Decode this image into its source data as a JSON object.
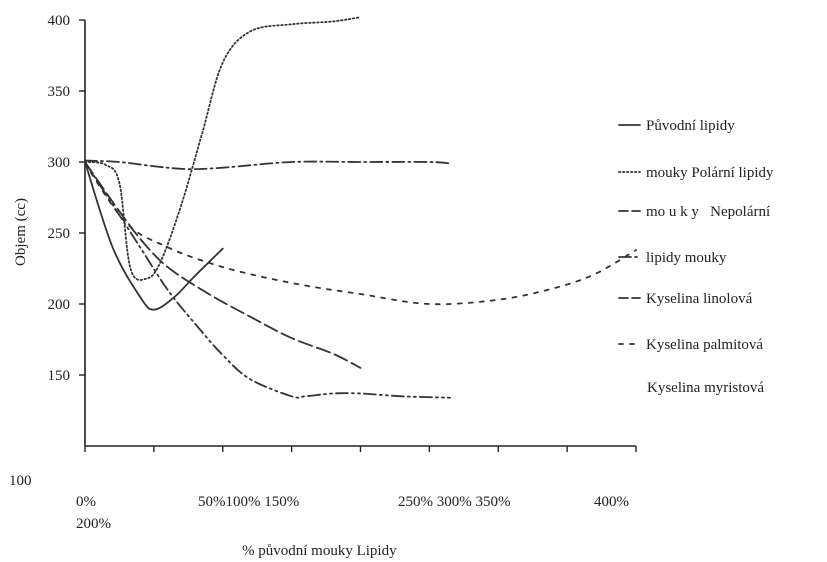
{
  "chart_data": {
    "type": "line",
    "ylabel": "Objem (cc)",
    "xlabel": "% původní mouky Lipidy",
    "ylim": [
      100,
      400
    ],
    "xlim": [
      0,
      400
    ],
    "y_ticks": [
      400,
      350,
      300,
      250,
      200,
      150
    ],
    "y_tick_bottom_label": "100",
    "x_tick_labels_row1": "0%",
    "x_tick_labels_row1b": "50%100% 150%",
    "x_tick_labels_row1c": "250% 300% 350%",
    "x_tick_labels_row1d": "400%",
    "x_tick_labels_row2": "200%",
    "legend": [
      "Původní lipidy",
      "mouky Polární lipidy",
      "mo u k y   Nepolární",
      "lipidy mouky",
      "Kyselina linolová",
      "Kyselina palmitová",
      "Kyselina myristová"
    ],
    "series": [
      {
        "dash": "solid",
        "x": [
          0,
          20,
          40,
          50,
          65,
          80,
          100
        ],
        "y": [
          300,
          240,
          205,
          196,
          205,
          220,
          239
        ]
      },
      {
        "dash": "dotted",
        "x": [
          0,
          15,
          25,
          33,
          45,
          55,
          70,
          85,
          100,
          120,
          150,
          180,
          200
        ],
        "y": [
          300,
          298,
          285,
          225,
          218,
          230,
          270,
          320,
          370,
          392,
          397,
          399,
          402
        ]
      },
      {
        "dash": "dashdot",
        "x": [
          0,
          25,
          50,
          75,
          100,
          150,
          200,
          250,
          265
        ],
        "y": [
          301,
          300,
          297,
          295,
          296,
          300,
          300,
          300,
          299
        ]
      },
      {
        "dash": "longdash",
        "x": [
          0,
          20,
          40,
          60,
          90,
          120,
          150,
          180,
          200
        ],
        "y": [
          300,
          272,
          246,
          226,
          207,
          191,
          176,
          165,
          155
        ]
      },
      {
        "dash": "dashdotdot",
        "x": [
          0,
          20,
          40,
          60,
          80,
          100,
          120,
          150,
          160,
          180,
          200,
          230,
          265
        ],
        "y": [
          300,
          270,
          240,
          210,
          186,
          164,
          147,
          135,
          135,
          137,
          137,
          135,
          134
        ]
      },
      {
        "dash": "shortdash",
        "x": [
          0,
          30,
          60,
          90,
          120,
          160,
          200,
          250,
          300,
          340,
          370,
          400
        ],
        "y": [
          299,
          257,
          240,
          229,
          221,
          213,
          207,
          200,
          203,
          211,
          221,
          238
        ]
      }
    ]
  }
}
